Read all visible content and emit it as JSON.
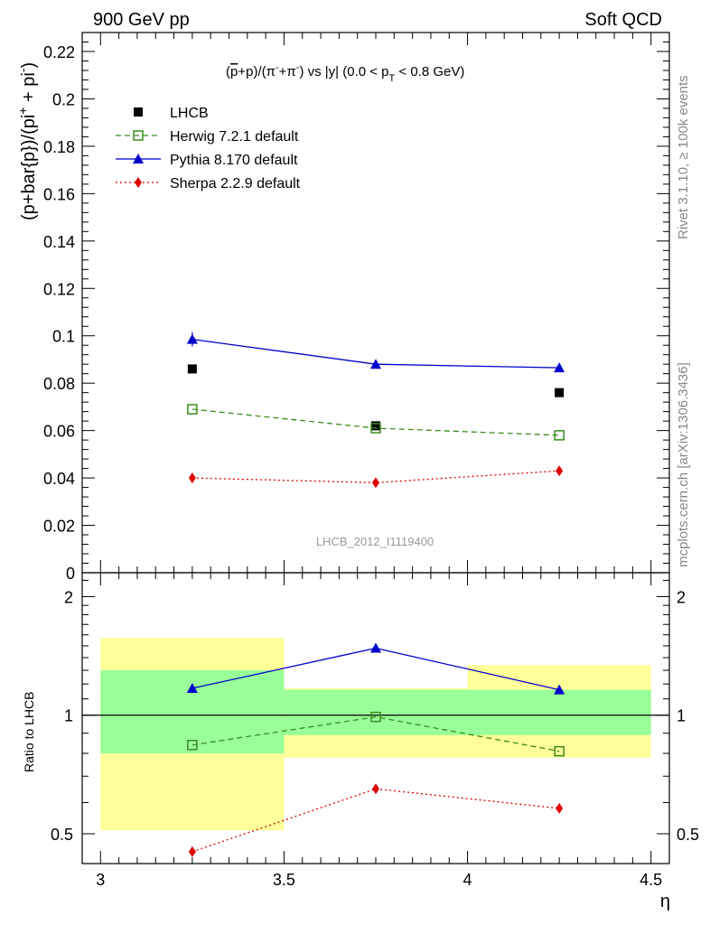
{
  "header": {
    "left": "900 GeV pp",
    "right": "Soft QCD"
  },
  "side_text": {
    "rivet": "Rivet 3.1.10, ≥ 100k events",
    "source": "mcplots.cern.ch [arXiv:1306.3436]"
  },
  "main_panel": {
    "title_parts": {
      "pbar": "p",
      "plus_p": "+p)/(",
      "pi1": "π",
      "minus": "-",
      "plus": "+",
      "pi2": "π",
      "vs": ") vs |y| (0.0 < p",
      "sub": "T",
      "tail": " < 0.8 GeV)",
      "open_paren": "("
    },
    "ylabel": "(p+bar{p})/(pi",
    "ylabel_sup": "+",
    "ylabel_tail": " + pi",
    "ylabel_sup2": "-",
    "ylabel_close": ")",
    "watermark": "LHCB_2012_I1119400"
  },
  "chart_data": [
    {
      "type": "scatter",
      "panel": "main",
      "x": [
        3.25,
        3.75,
        4.25
      ],
      "ylim": [
        0,
        0.228
      ],
      "yticks": [
        0,
        0.02,
        0.04,
        0.06,
        0.08,
        0.1,
        0.12,
        0.14,
        0.16,
        0.18,
        0.2,
        0.22
      ],
      "ytick_labels": [
        "0",
        "0.02",
        "0.04",
        "0.06",
        "0.08",
        "0.1",
        "0.12",
        "0.14",
        "0.16",
        "0.18",
        "0.2",
        "0.22"
      ],
      "series": [
        {
          "name": "LHCB",
          "values": [
            0.086,
            0.062,
            0.076
          ],
          "color": "#000000",
          "marker": "square",
          "line": "none"
        },
        {
          "name": "Herwig 7.2.1 default",
          "values": [
            0.069,
            0.061,
            0.058
          ],
          "color": "#3a8a1e",
          "marker": "open-square",
          "line": "dashed"
        },
        {
          "name": "Pythia 8.170 default",
          "values": [
            0.0985,
            0.088,
            0.0865
          ],
          "color": "#0000cc",
          "marker": "triangle",
          "line": "solid"
        },
        {
          "name": "Sherpa 2.2.9 default",
          "values": [
            0.04,
            0.038,
            0.043
          ],
          "color": "#e00000",
          "marker": "diamond",
          "line": "dotted"
        }
      ],
      "legend_position": "top-left"
    },
    {
      "type": "scatter",
      "panel": "ratio",
      "ylabel": "Ratio to LHCB",
      "xlabel": "η",
      "xlim": [
        2.95,
        4.55
      ],
      "xticks": [
        3,
        3.5,
        4,
        4.5
      ],
      "xtick_labels": [
        "3",
        "3.5",
        "4",
        "4.5"
      ],
      "ylim": [
        0.42,
        2.3
      ],
      "yticks": [
        0.5,
        1,
        2
      ],
      "ytick_labels": [
        "0.5",
        "1",
        "2"
      ],
      "bands": [
        {
          "x0": 3.0,
          "x1": 3.5,
          "yellow": [
            0.51,
            1.57
          ],
          "green": [
            0.8,
            1.3
          ]
        },
        {
          "x0": 3.5,
          "x1": 4.0,
          "yellow": [
            0.78,
            1.17
          ],
          "green": [
            0.89,
            1.16
          ]
        },
        {
          "x0": 4.0,
          "x1": 4.5,
          "yellow": [
            0.78,
            1.34
          ],
          "green": [
            0.89,
            1.16
          ]
        }
      ],
      "series": [
        {
          "name": "Herwig 7.2.1 default",
          "values": [
            0.84,
            0.99,
            0.81
          ],
          "color": "#3a8a1e",
          "marker": "open-square",
          "line": "dashed"
        },
        {
          "name": "Pythia 8.170 default",
          "values": [
            1.17,
            1.48,
            1.16
          ],
          "color": "#0000cc",
          "marker": "triangle",
          "line": "solid"
        },
        {
          "name": "Sherpa 2.2.9 default",
          "values": [
            0.45,
            0.65,
            0.58
          ],
          "color": "#e00000",
          "marker": "diamond",
          "line": "dotted"
        }
      ]
    }
  ]
}
